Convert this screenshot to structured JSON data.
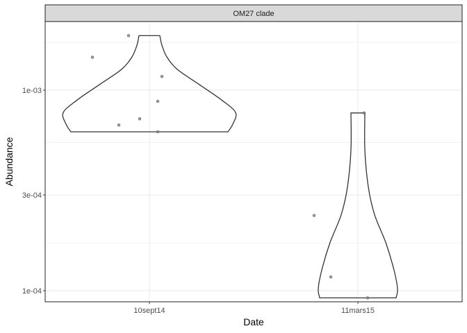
{
  "chart_data": {
    "type": "violin",
    "facet_title": "OM27 clade",
    "xlabel": "Date",
    "ylabel": "Abundance",
    "y_scale": "log10",
    "ylim": [
      8.8e-05,
      0.0022
    ],
    "y_ticks": [
      {
        "value": 0.0001,
        "label": "1e-04"
      },
      {
        "value": 0.0003,
        "label": "3e-04"
      },
      {
        "value": 0.001,
        "label": "1e-03"
      }
    ],
    "y_minor_ticks": [
      5.48e-05,
      0.000173,
      0.000548,
      0.00173
    ],
    "categories": [
      "10sept14",
      "11mars15"
    ],
    "groups": [
      {
        "category": "10sept14",
        "points": [
          0.00187,
          0.00146,
          0.00117,
          0.00088,
          0.00072,
          0.00067,
          0.00062
        ],
        "violin_range": [
          0.00062,
          0.00187
        ]
      },
      {
        "category": "11mars15",
        "points": [
          0.00077,
          0.000237,
          0.000117,
          9.2e-05
        ],
        "violin_range": [
          9.2e-05,
          0.00077
        ]
      }
    ],
    "grid": true,
    "colors": {
      "outline": "#333333",
      "points": "#7f7f7f",
      "grid": "#ebebeb",
      "strip_bg": "#d9d9d9"
    }
  }
}
